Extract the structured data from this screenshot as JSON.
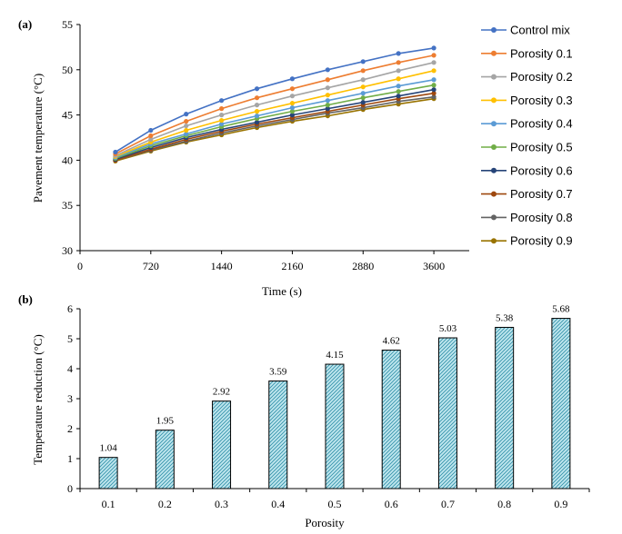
{
  "chart_data": [
    {
      "type": "line",
      "panel_label": "(a)",
      "xlabel": "Time (s)",
      "ylabel": "Pavement temperature (°C)",
      "xlim": [
        0,
        3960
      ],
      "ylim": [
        30,
        55
      ],
      "xticks": [
        0,
        720,
        1440,
        2160,
        2880,
        3600
      ],
      "yticks": [
        30,
        35,
        40,
        45,
        50,
        55
      ],
      "legend_position": "right",
      "grid": false,
      "x": [
        360,
        720,
        1080,
        1440,
        1800,
        2160,
        2520,
        2880,
        3240,
        3600
      ],
      "series": [
        {
          "name": "Control mix",
          "color": "#4472C4",
          "values": [
            40.9,
            43.3,
            45.1,
            46.6,
            47.9,
            49.0,
            50.0,
            50.9,
            51.8,
            52.4
          ]
        },
        {
          "name": "Porosity 0.1",
          "color": "#ED7D31",
          "values": [
            40.7,
            42.7,
            44.3,
            45.7,
            46.9,
            47.9,
            48.9,
            49.9,
            50.8,
            51.6
          ]
        },
        {
          "name": "Porosity 0.2",
          "color": "#A5A5A5",
          "values": [
            40.5,
            42.3,
            43.8,
            45.0,
            46.1,
            47.1,
            48.0,
            48.9,
            49.9,
            50.8
          ]
        },
        {
          "name": "Porosity 0.3",
          "color": "#FFC000",
          "values": [
            40.4,
            42.0,
            43.3,
            44.4,
            45.4,
            46.3,
            47.2,
            48.1,
            49.0,
            49.9
          ]
        },
        {
          "name": "Porosity 0.4",
          "color": "#5B9BD5",
          "values": [
            40.3,
            41.8,
            42.9,
            44.0,
            44.9,
            45.8,
            46.6,
            47.4,
            48.2,
            48.9
          ]
        },
        {
          "name": "Porosity 0.5",
          "color": "#70AD47",
          "values": [
            40.2,
            41.6,
            42.7,
            43.7,
            44.6,
            45.4,
            46.1,
            46.9,
            47.6,
            48.3
          ]
        },
        {
          "name": "Porosity 0.6",
          "color": "#264478",
          "values": [
            40.1,
            41.4,
            42.5,
            43.4,
            44.2,
            45.0,
            45.7,
            46.4,
            47.1,
            47.8
          ]
        },
        {
          "name": "Porosity 0.7",
          "color": "#9E480E",
          "values": [
            40.0,
            41.2,
            42.3,
            43.2,
            44.0,
            44.7,
            45.4,
            46.1,
            46.8,
            47.4
          ]
        },
        {
          "name": "Porosity 0.8",
          "color": "#636363",
          "values": [
            40.0,
            41.1,
            42.1,
            43.0,
            43.8,
            44.5,
            45.2,
            45.8,
            46.5,
            47.0
          ]
        },
        {
          "name": "Porosity 0.9",
          "color": "#997300",
          "values": [
            39.9,
            41.0,
            42.0,
            42.8,
            43.6,
            44.3,
            44.9,
            45.6,
            46.2,
            46.8
          ]
        }
      ]
    },
    {
      "type": "bar",
      "panel_label": "(b)",
      "xlabel": "Porosity",
      "ylabel": "Temperature reduction (°C)",
      "ylim": [
        0,
        6
      ],
      "yticks": [
        0,
        1,
        2,
        3,
        4,
        5,
        6
      ],
      "categories": [
        "0.1",
        "0.2",
        "0.3",
        "0.4",
        "0.5",
        "0.6",
        "0.7",
        "0.8",
        "0.9"
      ],
      "values": [
        1.04,
        1.95,
        2.92,
        3.59,
        4.15,
        4.62,
        5.03,
        5.38,
        5.68
      ],
      "data_labels": [
        "1.04",
        "1.95",
        "2.92",
        "3.59",
        "4.15",
        "4.62",
        "5.03",
        "5.38",
        "5.68"
      ],
      "bar_fill": "#BFE6EE",
      "bar_hatch_color": "#2E8FA8",
      "grid": false
    }
  ]
}
